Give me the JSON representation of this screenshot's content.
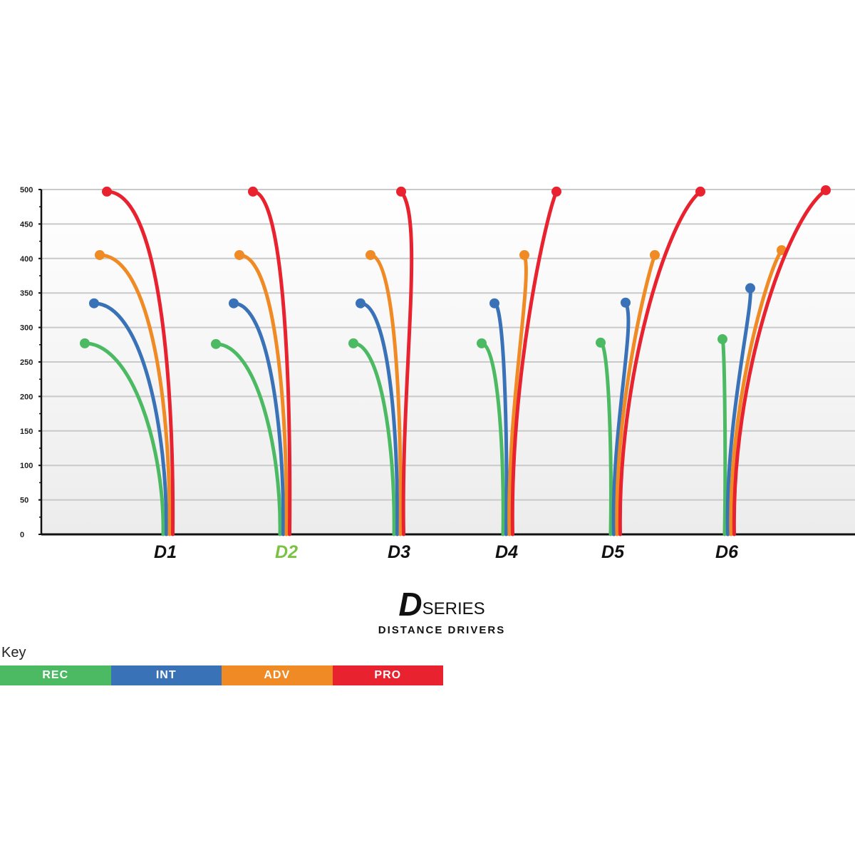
{
  "chart_data": {
    "type": "line",
    "y_ticks": [
      "0",
      "50",
      "100",
      "150",
      "200",
      "250",
      "300",
      "350",
      "400",
      "450",
      "500"
    ],
    "ylim": [
      0,
      500
    ],
    "grid": true,
    "categories": [
      "D1",
      "D2",
      "D3",
      "D4",
      "D5",
      "D6"
    ],
    "highlight_category": "D2",
    "series": [
      {
        "name": "REC",
        "end_values": [
          277,
          276,
          277,
          277,
          278,
          283
        ]
      },
      {
        "name": "INT",
        "end_values": [
          335,
          335,
          335,
          335,
          336,
          357
        ]
      },
      {
        "name": "ADV",
        "end_values": [
          405,
          405,
          405,
          405,
          405,
          412
        ]
      },
      {
        "name": "PRO",
        "end_values": [
          497,
          497,
          497,
          497,
          497,
          499
        ]
      }
    ]
  },
  "colors": {
    "REC": "#4cb963",
    "INT": "#3a72b8",
    "ADV": "#f08a24",
    "PRO": "#e8222e",
    "highlight": "#7cc242",
    "label": "#111111"
  },
  "branding": {
    "logo_letter": "D",
    "logo_word": "SERIES",
    "subtitle": "DISTANCE DRIVERS"
  },
  "key": {
    "title": "Key",
    "items": [
      {
        "label": "REC",
        "color": "#4cb963"
      },
      {
        "label": "INT",
        "color": "#3a72b8"
      },
      {
        "label": "ADV",
        "color": "#f08a24"
      },
      {
        "label": "PRO",
        "color": "#e8222e"
      }
    ]
  }
}
